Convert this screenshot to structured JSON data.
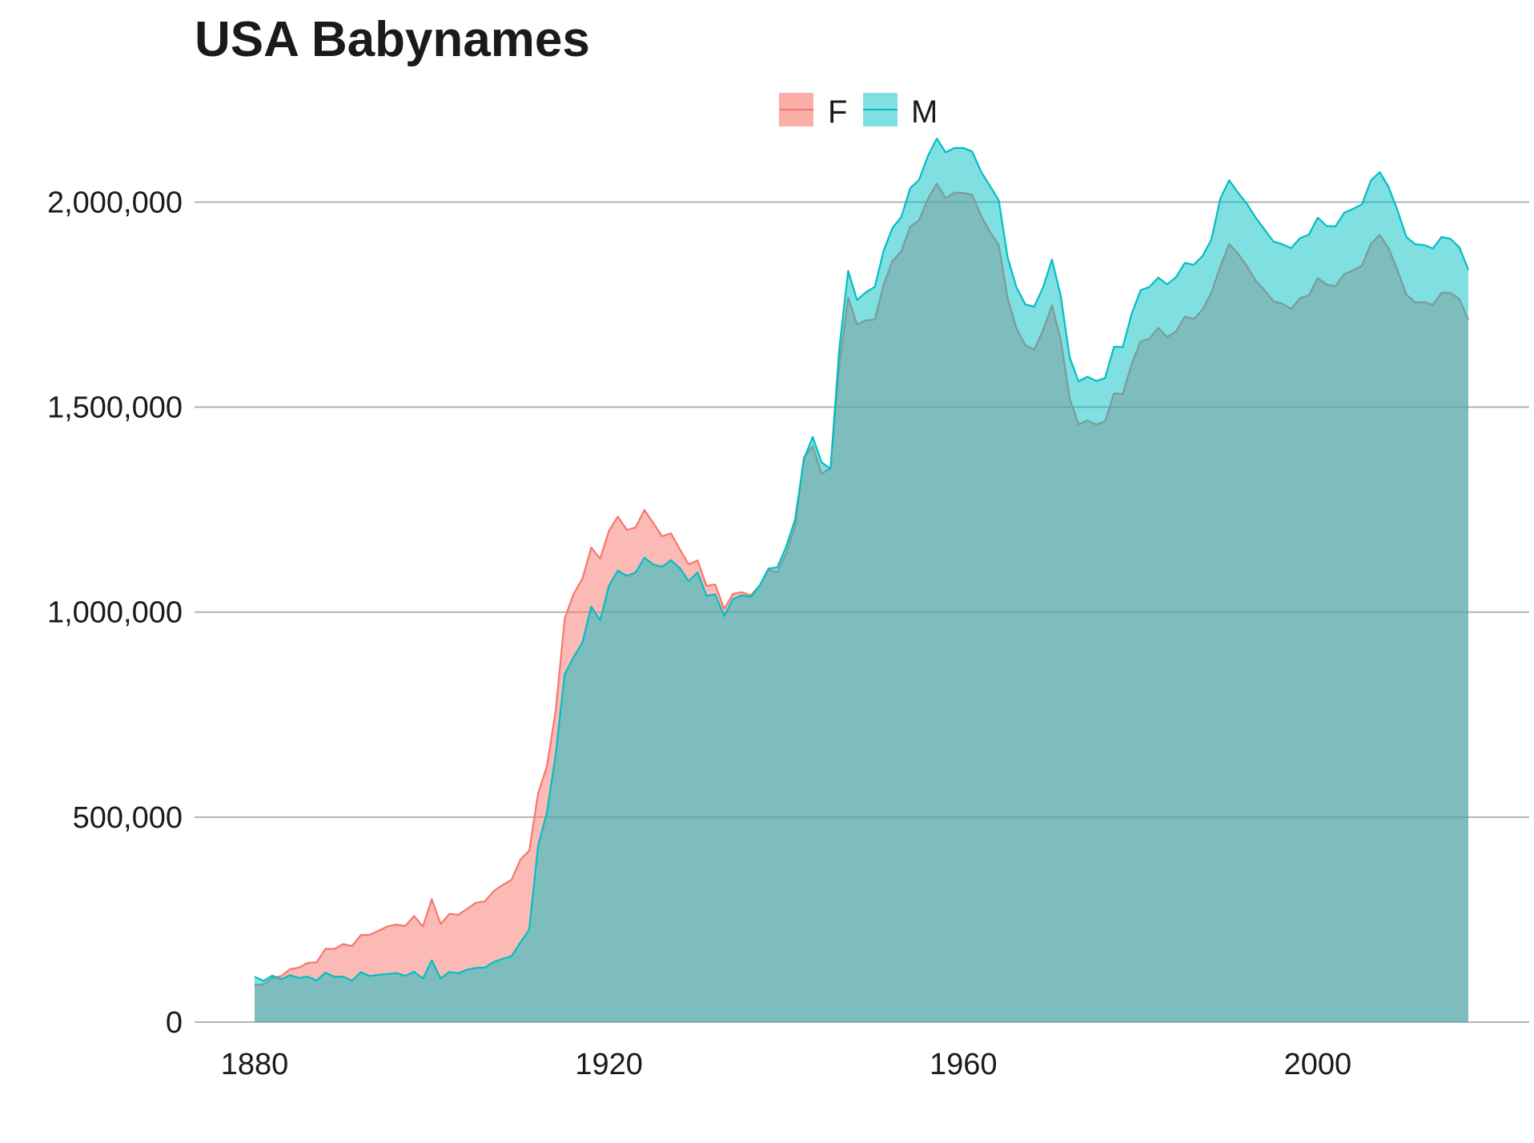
{
  "chart_data": {
    "type": "area",
    "title": "USA Babynames",
    "xlabel": "",
    "ylabel": "",
    "xlim": [
      1880,
      2017
    ],
    "ylim": [
      0,
      2200000
    ],
    "x_ticks": [
      1880,
      1920,
      1960,
      2000
    ],
    "x_tick_labels": [
      "1880",
      "1920",
      "1960",
      "2000"
    ],
    "y_ticks": [
      0,
      500000,
      1000000,
      1500000,
      2000000
    ],
    "y_tick_labels": [
      "0",
      "500,000",
      "1,000,000",
      "1,500,000",
      "2,000,000"
    ],
    "grid": "horizontal",
    "legend_position": "top",
    "x": [
      1880,
      1881,
      1882,
      1883,
      1884,
      1885,
      1886,
      1887,
      1888,
      1889,
      1890,
      1891,
      1892,
      1893,
      1894,
      1895,
      1896,
      1897,
      1898,
      1899,
      1900,
      1901,
      1902,
      1903,
      1904,
      1905,
      1906,
      1907,
      1908,
      1909,
      1910,
      1911,
      1912,
      1913,
      1914,
      1915,
      1916,
      1917,
      1918,
      1919,
      1920,
      1921,
      1922,
      1923,
      1924,
      1925,
      1926,
      1927,
      1928,
      1929,
      1930,
      1931,
      1932,
      1933,
      1934,
      1935,
      1936,
      1937,
      1938,
      1939,
      1940,
      1941,
      1942,
      1943,
      1944,
      1945,
      1946,
      1947,
      1948,
      1949,
      1950,
      1951,
      1952,
      1953,
      1954,
      1955,
      1956,
      1957,
      1958,
      1959,
      1960,
      1961,
      1962,
      1963,
      1964,
      1965,
      1966,
      1967,
      1968,
      1969,
      1970,
      1971,
      1972,
      1973,
      1974,
      1975,
      1976,
      1977,
      1978,
      1979,
      1980,
      1981,
      1982,
      1983,
      1984,
      1985,
      1986,
      1987,
      1988,
      1989,
      1990,
      1991,
      1992,
      1993,
      1994,
      1995,
      1996,
      1997,
      1998,
      1999,
      2000,
      2001,
      2002,
      2003,
      2004,
      2005,
      2006,
      2007,
      2008,
      2009,
      2010,
      2011,
      2012,
      2013,
      2014,
      2015,
      2016,
      2017
    ],
    "series": [
      {
        "name": "F",
        "color": "#F8766D",
        "fill": "#F8766D",
        "values": [
          90994,
          91953,
          107847,
          112319,
          129020,
          133055,
          144533,
          145980,
          178623,
          178366,
          190376,
          185475,
          212347,
          212906,
          222922,
          233630,
          237920,
          234202,
          258770,
          233022,
          299822,
          239351,
          264079,
          261973,
          276429,
          291193,
          294475,
          320116,
          334340,
          347087,
          396442,
          418225,
          557983,
          624405,
          761570,
          983855,
          1044365,
          1081222,
          1157564,
          1130253,
          1198252,
          1232889,
          1200737,
          1206232,
          1248835,
          1217324,
          1185013,
          1192205,
          1152871,
          1116599,
          1125823,
          1064170,
          1066953,
          1007664,
          1044359,
          1048604,
          1040905,
          1064604,
          1103553,
          1096338,
          1143386,
          1208118,
          1377170,
          1405013,
          1337009,
          1351765,
          1603999,
          1766995,
          1701256,
          1711809,
          1713459,
          1799073,
          1856229,
          1879958,
          1940245,
          1955536,
          2007701,
          2045134,
          2009726,
          2023061,
          2022123,
          2017356,
          1966463,
          1927229,
          1894606,
          1765402,
          1691759,
          1650825,
          1640173,
          1686946,
          1748236,
          1662734,
          1521208,
          1458084,
          1467418,
          1457696,
          1465484,
          1533225,
          1532469,
          1605646,
          1660176,
          1666751,
          1693068,
          1670548,
          1684027,
          1720534,
          1714780,
          1737798,
          1779167,
          1843248,
          1897558,
          1874362,
          1844045,
          1808315,
          1784734,
          1757948,
          1752112,
          1739781,
          1765814,
          1772668,
          1814735,
          1798760,
          1794600,
          1824390,
          1833240,
          1845289,
          1898408,
          1920154,
          1887204,
          1833776,
          1774230,
          1755254,
          1756152,
          1749632,
          1779337,
          1778106,
          1763916,
          1711811
        ]
      },
      {
        "name": "M",
        "color": "#00BFC4",
        "fill": "#00BFC4",
        "values": [
          110491,
          100743,
          113686,
          104627,
          114442,
          107799,
          110784,
          101413,
          120851,
          110580,
          111025,
          101196,
          122037,
          112317,
          115772,
          117398,
          119570,
          112758,
          122703,
          106218,
          150543,
          106478,
          122660,
          119233,
          128129,
          132319,
          133159,
          146833,
          154339,
          160838,
          194211,
          225951,
          429860,
          512535,
          654840,
          848668,
          890130,
          925533,
          1013323,
          980138,
          1064464,
          1101297,
          1088347,
          1096255,
          1132739,
          1115926,
          1110464,
          1126642,
          1107303,
          1075378,
          1097129,
          1039983,
          1043005,
          990612,
          1031883,
          1040790,
          1036946,
          1064314,
          1106203,
          1109115,
          1159549,
          1225500,
          1373954,
          1427081,
          1365123,
          1349754,
          1642802,
          1832025,
          1761109,
          1780010,
          1792919,
          1881612,
          1936876,
          1964002,
          2033828,
          2053962,
          2112773,
          2154919,
          2121113,
          2131934,
          2131928,
          2123245,
          2074258,
          2039618,
          2004052,
          1864826,
          1791845,
          1750430,
          1745256,
          1791911,
          1859875,
          1770720,
          1621873,
          1562573,
          1574184,
          1563823,
          1570859,
          1647212,
          1646622,
          1727592,
          1784912,
          1793063,
          1815830,
          1799159,
          1816717,
          1851522,
          1847035,
          1868592,
          1908915,
          2008359,
          2052927,
          2023131,
          1995983,
          1961998,
          1933017,
          1903902,
          1897204,
          1887713,
          1912102,
          1920715,
          1961947,
          1941734,
          1940498,
          1974337,
          1983602,
          1994565,
          2052844,
          2073152,
          2036894,
          1980271,
          1915377,
          1897237,
          1895186,
          1886788,
          1915122,
          1910153,
          1889137,
          1834490
        ]
      }
    ]
  }
}
